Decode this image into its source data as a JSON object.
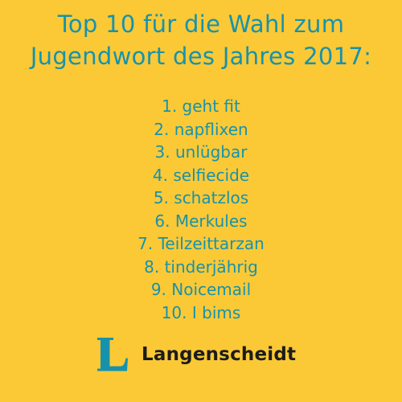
{
  "headline": {
    "line1": "Top 10 für die Wahl zum",
    "line2": "Jugendwort des Jahres 2017:"
  },
  "ranking": [
    "1. geht fit",
    "2. napflixen",
    "3. unlügbar",
    "4. selfiecide",
    "5. schatzlos",
    "6. Merkules",
    "7. Teilzeittarzan",
    "8. tinderjährig",
    "9. Noicemail",
    "10. I bims"
  ],
  "brand": {
    "logo_letter": "L",
    "name": "Langenscheidt"
  },
  "colors": {
    "background": "#fbc935",
    "text_accent": "#1792ad",
    "brand_text": "#1c1c1c"
  }
}
